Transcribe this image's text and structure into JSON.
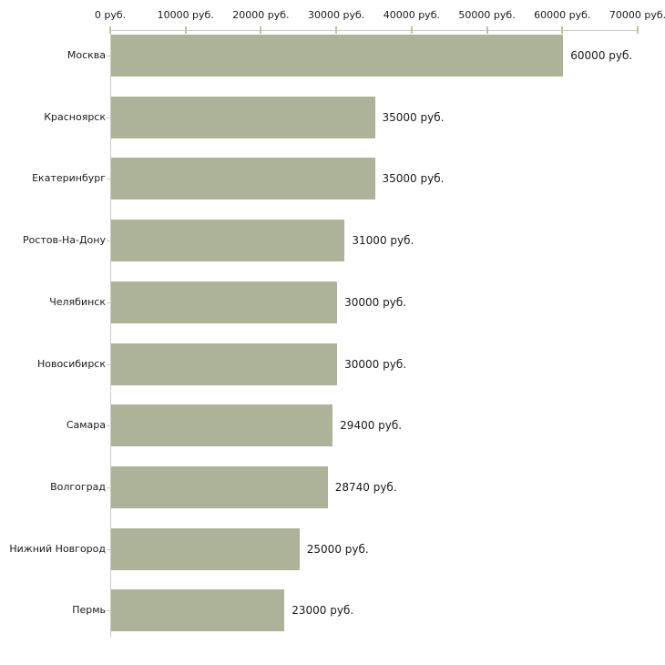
{
  "chart_data": {
    "type": "bar",
    "orientation": "horizontal",
    "title": "",
    "xlabel": "",
    "ylabel": "",
    "unit": "руб.",
    "grid": false,
    "legend": null,
    "xlim": [
      0,
      70000
    ],
    "x_ticks": [
      0,
      10000,
      20000,
      30000,
      40000,
      50000,
      60000,
      70000
    ],
    "x_tick_labels": [
      "0 руб.",
      "10000 руб.",
      "20000 руб.",
      "30000 руб.",
      "40000 руб.",
      "50000 руб.",
      "60000 руб.",
      "70000 руб."
    ],
    "categories": [
      "Москва",
      "Красноярск",
      "Екатеринбург",
      "Ростов-На-Дону",
      "Челябинск",
      "Новосибирск",
      "Самара",
      "Волгоград",
      "Нижний Новгород",
      "Пермь"
    ],
    "values": [
      60000,
      35000,
      35000,
      31000,
      30000,
      30000,
      29400,
      28740,
      25000,
      23000
    ],
    "value_labels": [
      "60000 руб.",
      "35000 руб.",
      "35000 руб.",
      "31000 руб.",
      "30000 руб.",
      "30000 руб.",
      "29400 руб.",
      "28740 руб.",
      "25000 руб.",
      "23000 руб."
    ],
    "colors": {
      "bar": "#adb399",
      "axis_line": "#cccccc",
      "x_tick": "#c2c2a3",
      "y_tick": "#d2cabe",
      "text": "#1a1a1a",
      "background": "#ffffff"
    }
  }
}
